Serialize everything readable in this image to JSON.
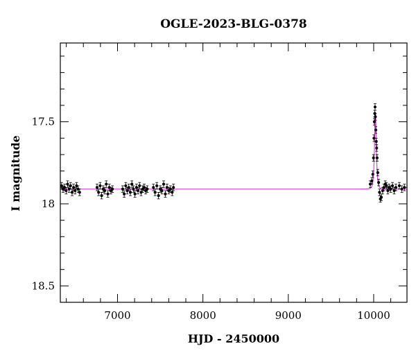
{
  "chart_data": {
    "type": "scatter",
    "title": "OGLE-2023-BLG-0378",
    "xlabel": "HJD - 2450000",
    "ylabel": "I magnitude",
    "xlim": [
      6330,
      10390
    ],
    "ylim": [
      18.6,
      17.02
    ],
    "y_inverted": true,
    "grid": false,
    "legend": "none",
    "x_ticks": [
      7000,
      8000,
      9000,
      10000
    ],
    "y_ticks": [
      17.5,
      18,
      18.5
    ],
    "colors": {
      "points": "#000000",
      "model": "#e040e0",
      "frame": "#000000"
    },
    "series": [
      {
        "kind": "points",
        "marker": "filled-circle-with-errorbar",
        "x": [
          6345,
          6362,
          6380,
          6398,
          6415,
          6433,
          6450,
          6468,
          6485,
          6503,
          6520,
          6538,
          6556,
          6760,
          6778,
          6796,
          6814,
          6832,
          6850,
          6868,
          6886,
          6904,
          6922,
          6940,
          7060,
          7078,
          7096,
          7114,
          7132,
          7150,
          7168,
          7186,
          7204,
          7222,
          7240,
          7258,
          7276,
          7294,
          7312,
          7330,
          7348,
          7420,
          7440,
          7460,
          7480,
          7500,
          7520,
          7540,
          7560,
          7580,
          7600,
          7620,
          7640,
          7655,
          9960,
          9978,
          9990,
          9998,
          10003,
          10008,
          10012,
          10016,
          10020,
          10025,
          10030,
          10035,
          10040,
          10048,
          10058,
          10068,
          10078,
          10090,
          10105,
          10120,
          10135,
          10150,
          10165,
          10180,
          10200,
          10220,
          10240,
          10260,
          10300,
          10330,
          10360
        ],
        "y": [
          17.89,
          17.91,
          17.9,
          17.92,
          17.88,
          17.91,
          17.89,
          17.93,
          17.9,
          17.92,
          17.89,
          17.91,
          17.93,
          17.9,
          17.93,
          17.89,
          17.95,
          17.91,
          17.92,
          17.88,
          17.94,
          17.9,
          17.92,
          17.91,
          17.91,
          17.94,
          17.89,
          17.92,
          17.9,
          17.93,
          17.88,
          17.91,
          17.94,
          17.9,
          17.92,
          17.89,
          17.93,
          17.91,
          17.9,
          17.92,
          17.91,
          17.9,
          17.93,
          17.89,
          17.95,
          17.91,
          17.92,
          17.88,
          17.94,
          17.9,
          17.92,
          17.91,
          17.93,
          17.9,
          17.88,
          17.86,
          17.82,
          17.72,
          17.6,
          17.5,
          17.45,
          17.41,
          17.47,
          17.55,
          17.62,
          17.66,
          17.72,
          17.81,
          17.87,
          17.93,
          17.97,
          17.96,
          17.92,
          17.9,
          17.88,
          17.89,
          17.92,
          17.9,
          17.91,
          17.89,
          17.92,
          17.9,
          17.89,
          17.91,
          17.9
        ]
      },
      {
        "kind": "model",
        "baseline": 17.91,
        "peak": 17.44,
        "t0": 10020,
        "tE": 14
      }
    ]
  }
}
